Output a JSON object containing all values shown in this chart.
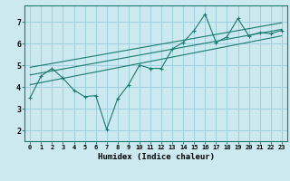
{
  "xlabel": "Humidex (Indice chaleur)",
  "bg_color": "#cce9f0",
  "grid_color": "#9ecfdc",
  "line_color": "#1a7a6e",
  "xlim": [
    -0.5,
    23.5
  ],
  "ylim": [
    1.5,
    7.75
  ],
  "xticks": [
    0,
    1,
    2,
    3,
    4,
    5,
    6,
    7,
    8,
    9,
    10,
    11,
    12,
    13,
    14,
    15,
    16,
    17,
    18,
    19,
    20,
    21,
    22,
    23
  ],
  "yticks": [
    2,
    3,
    4,
    5,
    6,
    7
  ],
  "series": [
    {
      "x": [
        0,
        1,
        2,
        3,
        4,
        5,
        6,
        7,
        8,
        9,
        10,
        11,
        12,
        13,
        14,
        15,
        16,
        17,
        18,
        19,
        20,
        21,
        22,
        23
      ],
      "y": [
        3.5,
        4.5,
        4.85,
        4.4,
        3.85,
        3.55,
        3.6,
        2.05,
        3.45,
        4.1,
        5.0,
        4.85,
        4.85,
        5.75,
        6.05,
        6.6,
        7.35,
        6.05,
        6.3,
        7.15,
        6.35,
        6.5,
        6.45,
        6.6
      ],
      "has_markers": true
    },
    {
      "x": [
        0,
        23
      ],
      "y": [
        4.1,
        6.35
      ],
      "has_markers": false
    },
    {
      "x": [
        0,
        23
      ],
      "y": [
        4.55,
        6.65
      ],
      "has_markers": false
    },
    {
      "x": [
        0,
        23
      ],
      "y": [
        4.9,
        6.95
      ],
      "has_markers": false
    }
  ]
}
